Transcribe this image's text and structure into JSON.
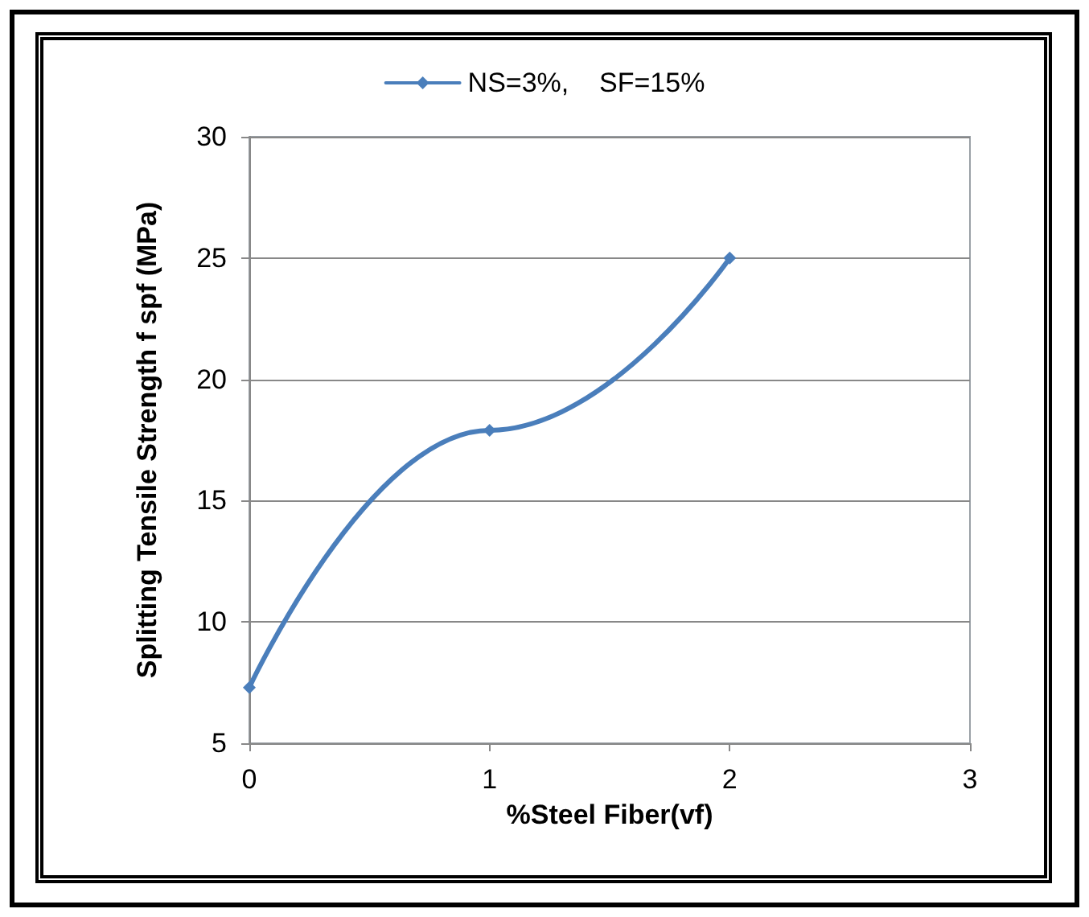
{
  "chart_data": {
    "type": "line",
    "xlabel": "%Steel Fiber(vf)",
    "ylabel": "Splitting Tensile Strength f spf (MPa)",
    "x": [
      0,
      1,
      2
    ],
    "series": [
      {
        "name": "NS=3%,    SF=15%",
        "color": "#4a7ebb",
        "values": [
          7.3,
          17.9,
          25
        ]
      }
    ],
    "xlim": [
      0,
      3
    ],
    "xticks": [
      0,
      1,
      2,
      3
    ],
    "ylim": [
      5,
      30
    ],
    "yticks": [
      5,
      10,
      15,
      20,
      25,
      30
    ],
    "grid": "y",
    "legend": "top",
    "marker": "diamond",
    "line_style": "solid"
  }
}
